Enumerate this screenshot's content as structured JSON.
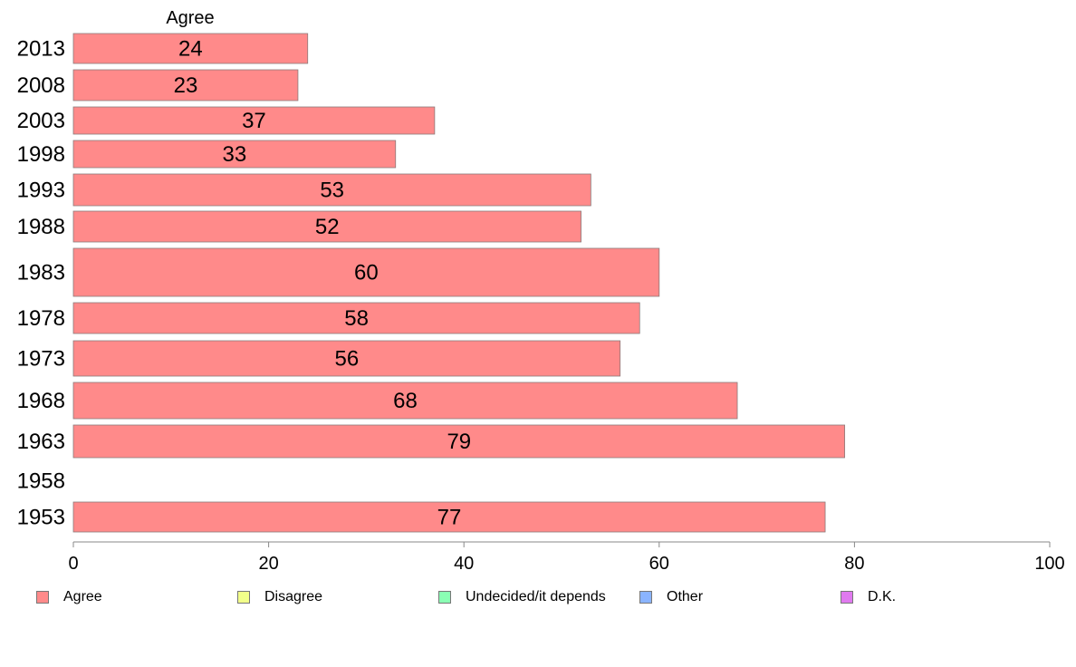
{
  "chart_data": {
    "type": "bar",
    "orientation": "horizontal",
    "title": "Agree",
    "categories": [
      "2013",
      "2008",
      "2003",
      "1998",
      "1993",
      "1988",
      "1983",
      "1978",
      "1973",
      "1968",
      "1963",
      "1958",
      "1953"
    ],
    "series": [
      {
        "name": "Agree",
        "color": "#ff8a8a",
        "values": [
          24,
          23,
          37,
          33,
          53,
          52,
          60,
          58,
          56,
          68,
          79,
          null,
          77
        ],
        "labels": [
          "24",
          "23",
          "37",
          "33",
          "53",
          "52",
          "60",
          "58",
          "56",
          "68",
          "79",
          "",
          "77"
        ]
      }
    ],
    "xlim": [
      0,
      100
    ],
    "xticks": [
      "0",
      "20",
      "40",
      "60",
      "80",
      "100"
    ],
    "xlabel": "",
    "ylabel": "",
    "grid": false,
    "legend": {
      "placement": "bottom",
      "entries": [
        {
          "label": "Agree",
          "color": "#ff8a8a"
        },
        {
          "label": "Disagree",
          "color": "#f2ff8a"
        },
        {
          "label": "Undecided/it depends",
          "color": "#8affb4"
        },
        {
          "label": "Other",
          "color": "#8ab4ff"
        },
        {
          "label": "D.K.",
          "color": "#e07aef"
        }
      ]
    }
  }
}
